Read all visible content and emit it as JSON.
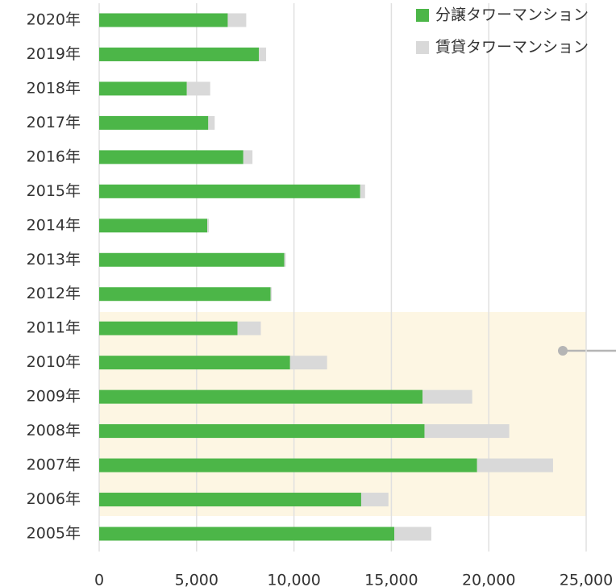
{
  "chart_data": {
    "type": "stacked_bar_horizontal",
    "categories": [
      "2020年",
      "2019年",
      "2018年",
      "2017年",
      "2016年",
      "2015年",
      "2014年",
      "2013年",
      "2012年",
      "2011年",
      "2010年",
      "2009年",
      "2008年",
      "2007年",
      "2006年",
      "2005年"
    ],
    "series": [
      {
        "name": "分譲タワーマンション",
        "color": "#4cb648",
        "values": [
          6600,
          8200,
          4500,
          5600,
          7400,
          13400,
          5550,
          9500,
          8800,
          7100,
          9800,
          16600,
          16700,
          19400,
          13450,
          15150
        ]
      },
      {
        "name": "賃貸タワーマンション",
        "color": "#d9d9d9",
        "values": [
          950,
          370,
          1200,
          330,
          470,
          250,
          80,
          80,
          60,
          1200,
          1900,
          2550,
          4350,
          3900,
          1400,
          1900
        ]
      }
    ],
    "xlim": [
      0,
      25000
    ],
    "xticks": [
      0,
      {
        "value": 5000,
        "label": "5,000"
      },
      {
        "value": 10000,
        "label": "10,000"
      },
      {
        "value": 15000,
        "label": "15,000"
      },
      {
        "value": 20000,
        "label": "20,000"
      },
      {
        "value": 25000,
        "label": "25,000"
      }
    ],
    "grid": true,
    "legend": "top-right"
  }
}
